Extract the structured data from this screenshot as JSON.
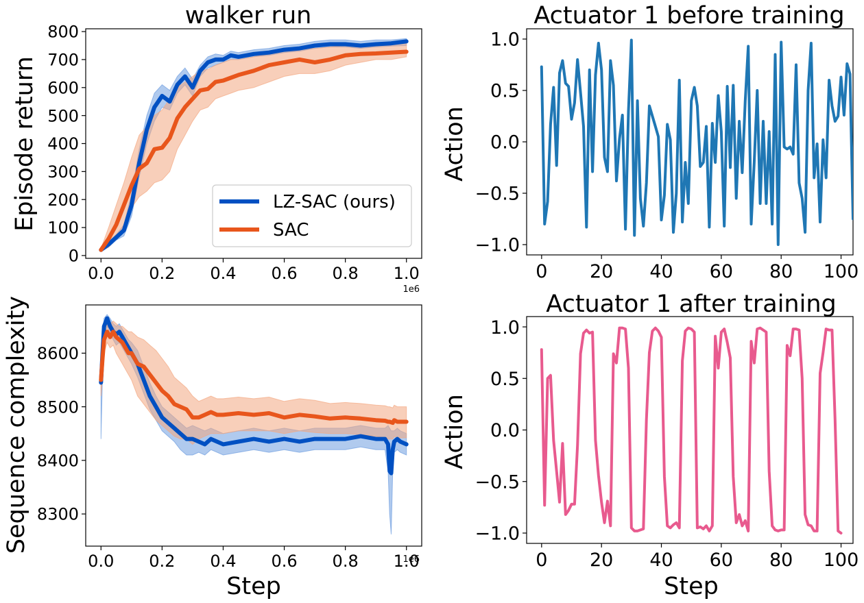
{
  "colors": {
    "lz_sac": "#0050c2",
    "lz_sac_band": "#6f9ee0",
    "sac": "#e8561c",
    "sac_band": "#f3a882",
    "actuator_before": "#1f77b4",
    "actuator_after": "#e85a8e"
  },
  "chart_data": [
    {
      "id": "return",
      "type": "line",
      "title": "walker run",
      "xlabel": "",
      "ylabel": "Episode return",
      "x_offset_label": "1e6",
      "xlim": [
        -0.05,
        1.05
      ],
      "ylim": [
        -10,
        810
      ],
      "xticks": [
        0.0,
        0.2,
        0.4,
        0.6,
        0.8,
        1.0
      ],
      "xtick_labels": [
        "0.0",
        "0.2",
        "0.4",
        "0.6",
        "0.8",
        "1.0"
      ],
      "yticks": [
        0,
        100,
        200,
        300,
        400,
        500,
        600,
        700,
        800
      ],
      "ytick_labels": [
        "0",
        "100",
        "200",
        "300",
        "400",
        "500",
        "600",
        "700",
        "800"
      ],
      "legend": {
        "placement": "lower-right",
        "entries": [
          "LZ-SAC (ours)",
          "SAC"
        ]
      },
      "x": [
        0.0,
        0.025,
        0.05,
        0.075,
        0.1,
        0.125,
        0.15,
        0.175,
        0.2,
        0.225,
        0.25,
        0.275,
        0.3,
        0.325,
        0.35,
        0.375,
        0.4,
        0.425,
        0.45,
        0.5,
        0.55,
        0.6,
        0.65,
        0.7,
        0.75,
        0.8,
        0.85,
        0.9,
        0.95,
        1.0
      ],
      "series": [
        {
          "name": "LZ-SAC (ours)",
          "color_key": "lz_sac",
          "band_key": "lz_sac_band",
          "values": [
            20,
            40,
            65,
            90,
            180,
            330,
            450,
            530,
            570,
            550,
            610,
            640,
            600,
            660,
            690,
            700,
            700,
            715,
            710,
            720,
            725,
            735,
            740,
            750,
            755,
            755,
            750,
            755,
            758,
            765
          ],
          "lower": [
            15,
            30,
            55,
            70,
            140,
            280,
            400,
            480,
            530,
            520,
            580,
            610,
            570,
            640,
            670,
            680,
            690,
            700,
            700,
            710,
            715,
            725,
            730,
            740,
            745,
            745,
            740,
            745,
            748,
            750
          ],
          "upper": [
            25,
            50,
            75,
            110,
            220,
            380,
            500,
            580,
            610,
            590,
            640,
            670,
            630,
            680,
            710,
            720,
            715,
            730,
            725,
            735,
            740,
            750,
            755,
            765,
            770,
            770,
            765,
            770,
            770,
            775
          ]
        },
        {
          "name": "SAC",
          "color_key": "sac",
          "band_key": "sac_band",
          "values": [
            20,
            60,
            110,
            180,
            250,
            310,
            330,
            380,
            385,
            420,
            490,
            530,
            560,
            590,
            595,
            620,
            625,
            635,
            645,
            660,
            680,
            690,
            700,
            690,
            700,
            715,
            720,
            722,
            725,
            728
          ],
          "lower": [
            15,
            30,
            60,
            110,
            170,
            210,
            230,
            260,
            270,
            300,
            380,
            430,
            480,
            520,
            530,
            560,
            570,
            580,
            590,
            600,
            620,
            640,
            650,
            650,
            660,
            680,
            690,
            700,
            700,
            710
          ],
          "upper": [
            25,
            100,
            180,
            260,
            350,
            430,
            460,
            500,
            520,
            560,
            600,
            620,
            640,
            660,
            665,
            680,
            690,
            700,
            700,
            710,
            720,
            730,
            740,
            740,
            745,
            750,
            755,
            755,
            758,
            760
          ]
        }
      ]
    },
    {
      "id": "before",
      "type": "line",
      "title": "Actuator 1 before training",
      "xlabel": "",
      "ylabel": "Action",
      "xlim": [
        -5,
        104
      ],
      "ylim": [
        -1.1,
        1.1
      ],
      "xticks": [
        0,
        20,
        40,
        60,
        80,
        100
      ],
      "xtick_labels": [
        "0",
        "20",
        "40",
        "60",
        "80",
        "100"
      ],
      "yticks": [
        1.0,
        0.5,
        0.0,
        -0.5,
        -1.0
      ],
      "ytick_labels": [
        "1.0",
        "0.5",
        "0.0",
        "−0.5",
        "−1.0"
      ],
      "series": [
        {
          "name": "",
          "color_key": "actuator_before",
          "values": [
            0.73,
            -0.8,
            -0.58,
            0.17,
            0.53,
            -0.23,
            0.67,
            0.79,
            0.57,
            0.54,
            0.22,
            0.38,
            0.8,
            0.48,
            0.15,
            -0.83,
            0.7,
            -0.29,
            0.65,
            0.96,
            0.7,
            -0.15,
            -0.29,
            0.79,
            0.55,
            -0.38,
            0.03,
            0.26,
            -0.85,
            0.3,
            0.99,
            -0.91,
            0.4,
            -0.55,
            -0.82,
            -0.4,
            0.35,
            0.25,
            0.15,
            0.05,
            -0.76,
            -0.52,
            0.17,
            0.02,
            -0.88,
            -0.5,
            0.6,
            -0.78,
            -0.2,
            -0.6,
            0.4,
            0.53,
            0.35,
            -0.24,
            -0.2,
            0.15,
            -0.83,
            0.18,
            -0.2,
            0.45,
            0.1,
            -0.82,
            0.54,
            -0.25,
            0.55,
            -0.55,
            0.2,
            -0.3,
            0.4,
            0.93,
            -0.8,
            -0.2,
            0.5,
            -0.6,
            0.2,
            -0.6,
            0.1,
            -0.8,
            0.85,
            -1.0,
            0.97,
            -0.05,
            -0.07,
            -0.05,
            -0.12,
            0.75,
            -0.4,
            -0.55,
            -0.88,
            0.5,
            0.96,
            -0.35,
            -0.02,
            -0.78,
            0.02,
            -0.35,
            0.6,
            0.35,
            0.2,
            0.25,
            0.63,
            0.26,
            0.76,
            0.66,
            -0.75,
            0.93,
            0.5,
            -0.33,
            0.85,
            0.72,
            0.71,
            -0.65,
            -0.84
          ]
        }
      ]
    },
    {
      "id": "complexity",
      "type": "line",
      "title": "",
      "xlabel": "Step",
      "ylabel": "Sequence complexity",
      "x_offset_label": "1e6",
      "xlim": [
        -0.05,
        1.05
      ],
      "ylim": [
        8240,
        8690
      ],
      "xticks": [
        0.0,
        0.2,
        0.4,
        0.6,
        0.8,
        1.0
      ],
      "xtick_labels": [
        "0.0",
        "0.2",
        "0.4",
        "0.6",
        "0.8",
        "1.0"
      ],
      "yticks": [
        8300,
        8400,
        8500,
        8600
      ],
      "ytick_labels": [
        "8300",
        "8400",
        "8500",
        "8600"
      ],
      "x": [
        0.0,
        0.005,
        0.01,
        0.02,
        0.03,
        0.04,
        0.05,
        0.06,
        0.07,
        0.08,
        0.09,
        0.1,
        0.12,
        0.14,
        0.16,
        0.18,
        0.2,
        0.22,
        0.24,
        0.26,
        0.28,
        0.3,
        0.32,
        0.34,
        0.36,
        0.38,
        0.4,
        0.45,
        0.5,
        0.55,
        0.6,
        0.65,
        0.7,
        0.75,
        0.8,
        0.85,
        0.9,
        0.93,
        0.94,
        0.945,
        0.95,
        0.955,
        0.96,
        0.97,
        0.98,
        1.0
      ],
      "series": [
        {
          "name": "LZ-SAC (ours)",
          "color_key": "lz_sac",
          "band_key": "lz_sac_band",
          "values": [
            8545,
            8600,
            8650,
            8665,
            8650,
            8640,
            8635,
            8640,
            8630,
            8620,
            8610,
            8600,
            8580,
            8550,
            8520,
            8500,
            8480,
            8470,
            8460,
            8450,
            8440,
            8440,
            8435,
            8430,
            8440,
            8435,
            8430,
            8435,
            8440,
            8435,
            8440,
            8435,
            8440,
            8440,
            8440,
            8445,
            8440,
            8440,
            8430,
            8380,
            8376,
            8420,
            8435,
            8440,
            8435,
            8430
          ],
          "lower": [
            8440,
            8560,
            8630,
            8650,
            8635,
            8625,
            8615,
            8620,
            8610,
            8600,
            8590,
            8580,
            8555,
            8525,
            8495,
            8475,
            8455,
            8445,
            8435,
            8420,
            8410,
            8410,
            8415,
            8410,
            8420,
            8415,
            8410,
            8415,
            8420,
            8415,
            8420,
            8415,
            8420,
            8420,
            8420,
            8425,
            8420,
            8420,
            8380,
            8300,
            8262,
            8380,
            8415,
            8420,
            8415,
            8410
          ],
          "upper": [
            8560,
            8630,
            8665,
            8672,
            8665,
            8655,
            8650,
            8655,
            8645,
            8635,
            8625,
            8620,
            8605,
            8575,
            8545,
            8520,
            8500,
            8490,
            8480,
            8470,
            8460,
            8465,
            8460,
            8455,
            8460,
            8455,
            8450,
            8455,
            8460,
            8455,
            8460,
            8455,
            8460,
            8460,
            8460,
            8465,
            8460,
            8460,
            8465,
            8460,
            8455,
            8455,
            8455,
            8460,
            8455,
            8450
          ]
        },
        {
          "name": "SAC",
          "color_key": "sac",
          "band_key": "sac_band",
          "values": [
            8550,
            8590,
            8625,
            8640,
            8630,
            8640,
            8630,
            8625,
            8620,
            8610,
            8600,
            8600,
            8580,
            8575,
            8560,
            8545,
            8530,
            8520,
            8505,
            8500,
            8495,
            8480,
            8480,
            8485,
            8490,
            8485,
            8485,
            8488,
            8485,
            8488,
            8480,
            8485,
            8482,
            8478,
            8480,
            8478,
            8475,
            8474,
            8472,
            8472,
            8471,
            8470,
            8475,
            8472,
            8472,
            8472
          ],
          "lower": [
            8520,
            8560,
            8600,
            8620,
            8610,
            8615,
            8600,
            8590,
            8580,
            8570,
            8560,
            8550,
            8520,
            8505,
            8490,
            8475,
            8465,
            8455,
            8445,
            8440,
            8440,
            8430,
            8440,
            8445,
            8450,
            8450,
            8450,
            8455,
            8455,
            8455,
            8450,
            8455,
            8452,
            8450,
            8450,
            8448,
            8445,
            8442,
            8440,
            8440,
            8440,
            8440,
            8445,
            8442,
            8442,
            8442
          ],
          "upper": [
            8580,
            8620,
            8645,
            8660,
            8655,
            8660,
            8655,
            8650,
            8650,
            8645,
            8640,
            8640,
            8630,
            8625,
            8615,
            8605,
            8590,
            8575,
            8555,
            8545,
            8535,
            8520,
            8510,
            8515,
            8520,
            8515,
            8515,
            8518,
            8515,
            8518,
            8510,
            8515,
            8512,
            8506,
            8508,
            8506,
            8503,
            8502,
            8500,
            8500,
            8499,
            8498,
            8503,
            8500,
            8500,
            8500
          ]
        }
      ]
    },
    {
      "id": "after",
      "type": "line",
      "title": "Actuator 1 after training",
      "xlabel": "Step",
      "ylabel": "Action",
      "xlim": [
        -5,
        104
      ],
      "ylim": [
        -1.1,
        1.1
      ],
      "xticks": [
        0,
        20,
        40,
        60,
        80,
        100
      ],
      "xtick_labels": [
        "0",
        "20",
        "40",
        "60",
        "80",
        "100"
      ],
      "yticks": [
        1.0,
        0.5,
        0.0,
        -0.5,
        -1.0
      ],
      "ytick_labels": [
        "1.0",
        "0.5",
        "0.0",
        "−0.5",
        "−1.0"
      ],
      "series": [
        {
          "name": "",
          "color_key": "actuator_after",
          "values": [
            0.78,
            -0.73,
            0.5,
            0.53,
            -0.1,
            -0.4,
            -0.7,
            -0.13,
            -0.82,
            -0.78,
            -0.72,
            -0.72,
            -0.15,
            0.74,
            0.94,
            0.97,
            0.94,
            0.95,
            -0.1,
            -0.44,
            -0.7,
            -0.9,
            -0.69,
            -0.93,
            0.74,
            0.65,
            0.99,
            0.99,
            0.98,
            0.6,
            -0.95,
            -0.98,
            -0.98,
            -0.97,
            -0.96,
            0.1,
            0.75,
            0.96,
            0.99,
            0.96,
            0.9,
            -0.45,
            -0.93,
            -0.95,
            -0.92,
            -0.9,
            -0.95,
            0.67,
            0.96,
            0.99,
            0.98,
            0.95,
            -0.95,
            -0.94,
            -0.96,
            -0.93,
            -0.98,
            -0.93,
            0.91,
            0.6,
            0.95,
            0.98,
            0.85,
            0.7,
            -0.45,
            -0.9,
            -0.82,
            -0.93,
            -0.88,
            -0.98,
            0.86,
            0.65,
            0.98,
            0.99,
            0.97,
            0.95,
            -0.4,
            -0.93,
            -0.97,
            -0.98,
            -0.97,
            -0.97,
            0.82,
            0.72,
            0.98,
            0.98,
            0.97,
            0.5,
            -0.82,
            -0.92,
            -0.93,
            -0.98,
            -0.98,
            0.55,
            0.75,
            0.98,
            0.97,
            0.97,
            0.1,
            -0.98,
            -1.0
          ]
        }
      ]
    }
  ]
}
